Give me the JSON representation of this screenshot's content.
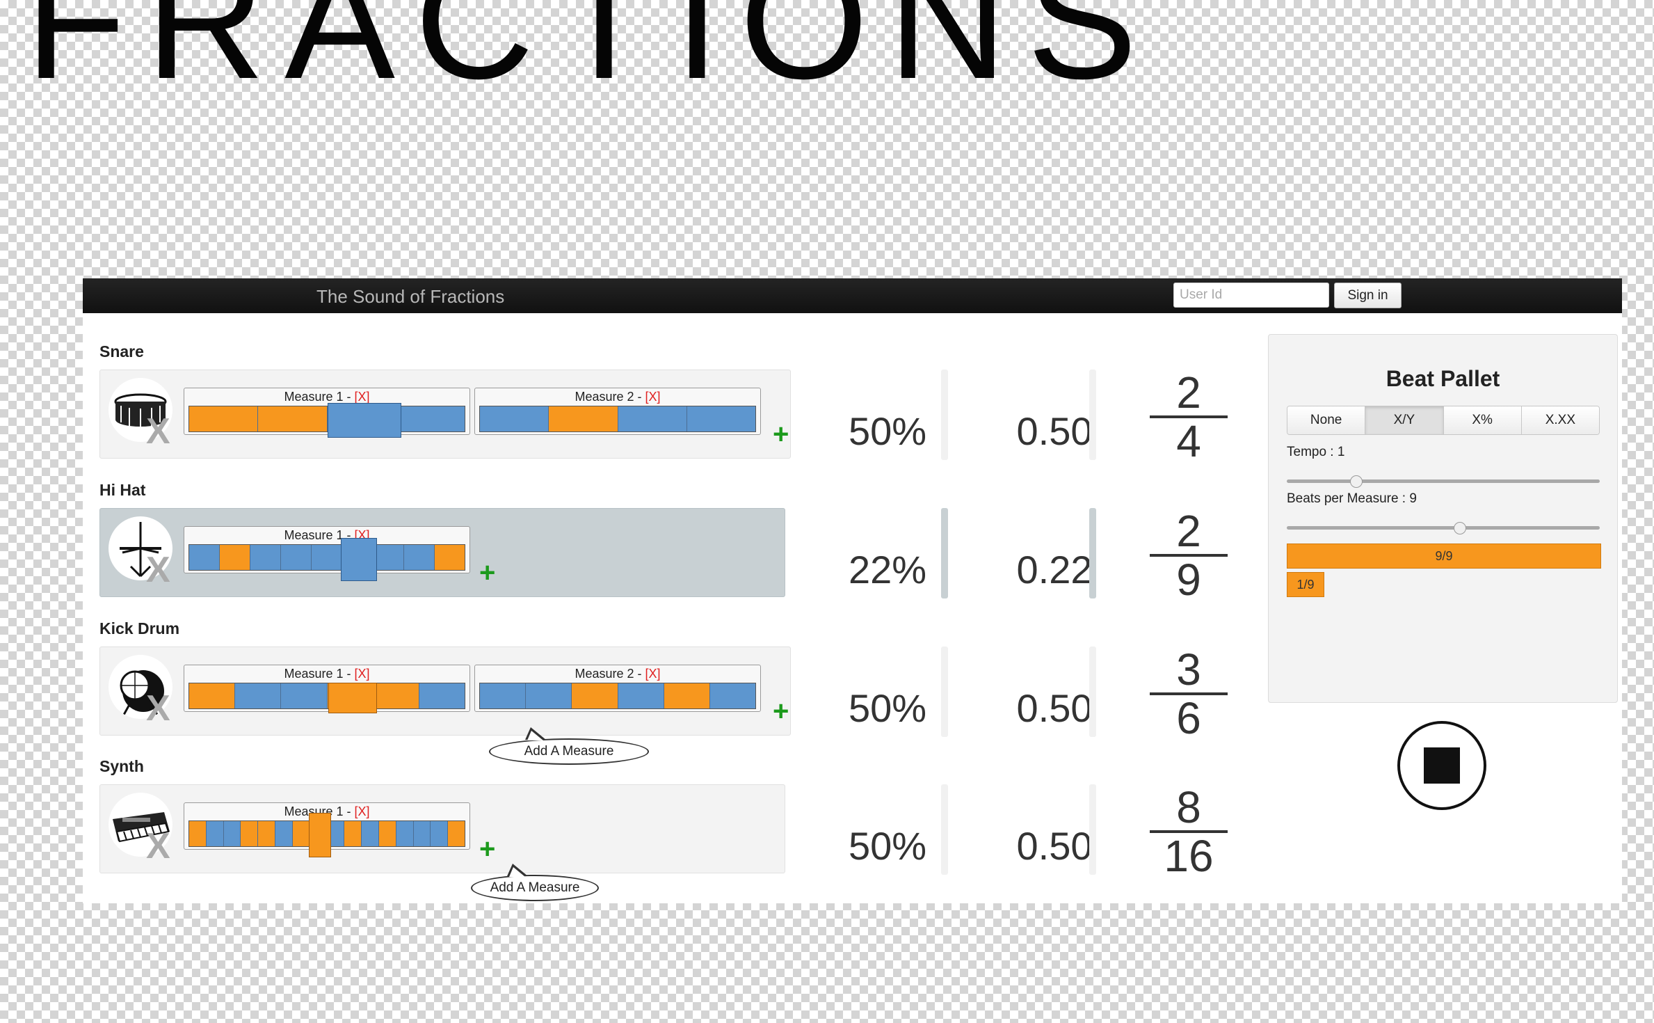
{
  "poster": {
    "title": "FRACTIONS"
  },
  "navbar": {
    "brand": "The Sound of Fractions",
    "user_id_placeholder": "User Id",
    "sign_in_label": "Sign in"
  },
  "tracks": [
    {
      "name": "Snare",
      "icon": "snare-drum-icon",
      "remove_label": "X",
      "add_label": "+",
      "measures": [
        {
          "title": "Measure 1 - ",
          "remove": "[X]",
          "beats": [
            1,
            1,
            0,
            0
          ]
        },
        {
          "title": "Measure 2 - ",
          "remove": "[X]",
          "beats": [
            0,
            1,
            0,
            0
          ]
        }
      ],
      "percent": "50%",
      "decimal": "0.50",
      "numerator": "2",
      "denominator": "4"
    },
    {
      "name": "Hi Hat",
      "icon": "hi-hat-icon",
      "remove_label": "X",
      "add_label": "+",
      "measures": [
        {
          "title": "Measure 1 - ",
          "remove": "[X]",
          "beats": [
            0,
            1,
            0,
            0,
            0,
            0,
            0,
            0,
            1
          ]
        }
      ],
      "percent": "22%",
      "decimal": "0.22",
      "numerator": "2",
      "denominator": "9"
    },
    {
      "name": "Kick Drum",
      "icon": "kick-drum-icon",
      "remove_label": "X",
      "add_label": "+",
      "tooltip": "Add A Measure",
      "measures": [
        {
          "title": "Measure 1 - ",
          "remove": "[X]",
          "beats": [
            1,
            0,
            0,
            1,
            1,
            0
          ]
        },
        {
          "title": "Measure 2 - ",
          "remove": "[X]",
          "beats": [
            0,
            0,
            1,
            0,
            1,
            0
          ]
        }
      ],
      "percent": "50%",
      "decimal": "0.50",
      "numerator": "3",
      "denominator": "6"
    },
    {
      "name": "Synth",
      "icon": "synth-keyboard-icon",
      "remove_label": "X",
      "add_label": "+",
      "tooltip": "Add A Measure",
      "measures": [
        {
          "title": "Measure 1 - ",
          "remove": "[X]",
          "beats": [
            1,
            0,
            0,
            1,
            1,
            0,
            1,
            1,
            0,
            1,
            0,
            1,
            0,
            0,
            0,
            1
          ]
        }
      ],
      "percent": "50%",
      "decimal": "0.50",
      "numerator": "8",
      "denominator": "16"
    }
  ],
  "pallet": {
    "title": "Beat Pallet",
    "modes": [
      "None",
      "X/Y",
      "X%",
      "X.XX"
    ],
    "active_mode": "X/Y",
    "tempo_label": "Tempo : 1",
    "tempo_level": 0.22,
    "beats_label": "Beats per Measure : 9",
    "beats_level": 0.55,
    "full_bar_label": "9/9",
    "partial_bar_label": "1/9"
  },
  "controls": {
    "stop_icon": "stop-icon"
  },
  "colors": {
    "beat_on": "#f7971e",
    "beat_off": "#5d96cf",
    "navbar": "#1a1a1a",
    "add": "#1c9a1c",
    "remove": "#e02020"
  }
}
